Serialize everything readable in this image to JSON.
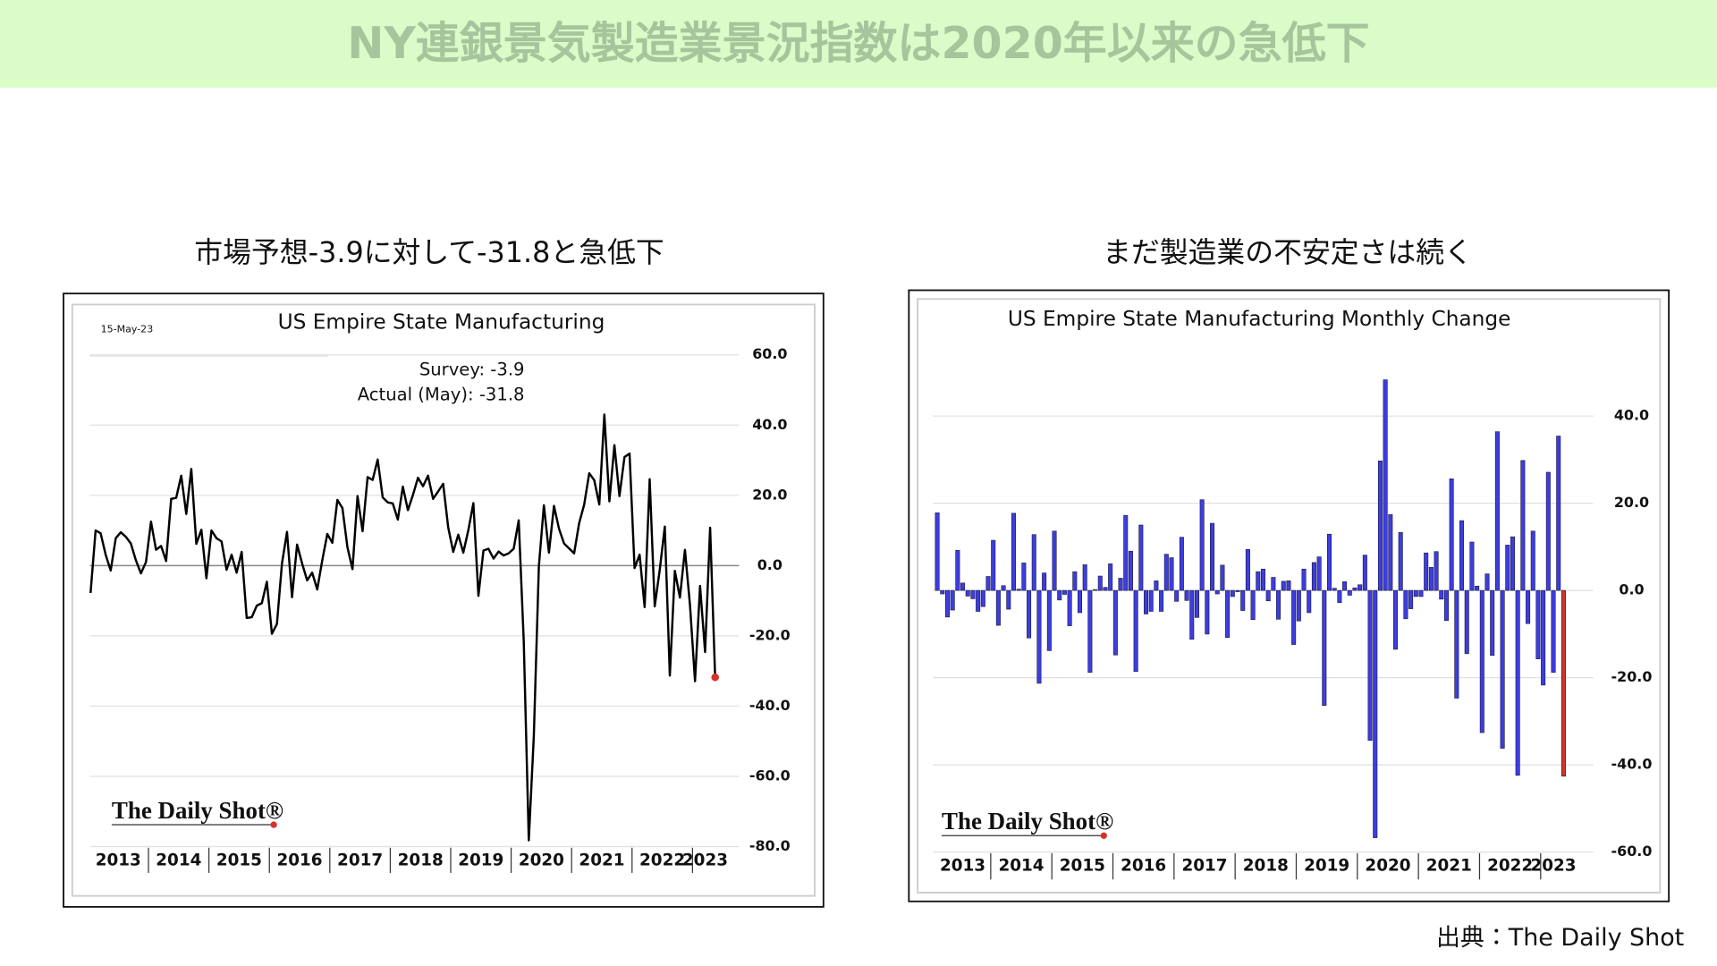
{
  "title": "NY連銀景気製造業景況指数は2020年以来の急低下",
  "source": "出典：The Daily Shot",
  "chart_data": [
    {
      "type": "line",
      "heading": "市場予想-3.9に対して-31.8と急低下",
      "title": "US Empire State Manufacturing",
      "date": "15-May-23",
      "annotations": [
        "Survey:  -3.9",
        "Actual (May):  -31.8"
      ],
      "logo": "The Daily Shot®",
      "categories": [
        "2013",
        null,
        null,
        null,
        null,
        null,
        null,
        null,
        null,
        null,
        null,
        null,
        "2014",
        null,
        null,
        null,
        null,
        null,
        null,
        null,
        null,
        null,
        null,
        null,
        "2015",
        null,
        null,
        null,
        null,
        null,
        null,
        null,
        null,
        null,
        null,
        null,
        "2016",
        null,
        null,
        null,
        null,
        null,
        null,
        null,
        null,
        null,
        null,
        null,
        "2017",
        null,
        null,
        null,
        null,
        null,
        null,
        null,
        null,
        null,
        null,
        null,
        "2018",
        null,
        null,
        null,
        null,
        null,
        null,
        null,
        null,
        null,
        null,
        null,
        "2019",
        null,
        null,
        null,
        null,
        null,
        null,
        null,
        null,
        null,
        null,
        null,
        "2020",
        null,
        null,
        null,
        null,
        null,
        null,
        null,
        null,
        null,
        null,
        null,
        "2021",
        null,
        null,
        null,
        null,
        null,
        null,
        null,
        null,
        null,
        null,
        null,
        "2022",
        null,
        null,
        null,
        null,
        null,
        null,
        null,
        null,
        null,
        null,
        null,
        "2023",
        null,
        null,
        null,
        null
      ],
      "values": [
        -7.8,
        10.0,
        9.2,
        3.1,
        -1.4,
        7.8,
        9.5,
        8.2,
        6.3,
        1.5,
        -2.2,
        1.0,
        12.5,
        4.5,
        5.6,
        1.3,
        19.0,
        19.3,
        25.6,
        14.7,
        27.5,
        6.2,
        10.2,
        -3.6,
        10.0,
        7.8,
        6.9,
        -1.2,
        3.1,
        -2.0,
        3.9,
        -14.9,
        -14.7,
        -11.4,
        -10.7,
        -4.6,
        -19.4,
        -16.6,
        0.6,
        9.6,
        -9.0,
        6.0,
        0.6,
        -4.2,
        -2.0,
        -6.8,
        1.5,
        9.0,
        6.5,
        18.7,
        16.4,
        5.2,
        -1.0,
        19.8,
        9.8,
        25.2,
        24.4,
        30.2,
        19.4,
        18.0,
        17.7,
        13.1,
        22.5,
        15.8,
        20.1,
        25.0,
        22.6,
        25.6,
        19.0,
        21.1,
        23.3,
        10.9,
        3.9,
        8.8,
        3.7,
        10.1,
        17.8,
        -8.6,
        4.3,
        4.8,
        2.0,
        4.0,
        2.9,
        3.5,
        4.8,
        12.9,
        -21.5,
        -78.2,
        -48.5,
        -0.2,
        17.2,
        3.7,
        17.0,
        10.5,
        6.3,
        4.9,
        3.5,
        12.1,
        17.4,
        26.3,
        24.3,
        17.4,
        43.0,
        18.3,
        34.3,
        19.8,
        30.9,
        31.9,
        -0.7,
        3.1,
        -11.8,
        24.6,
        -11.6,
        -1.2,
        11.1,
        -31.3,
        -1.5,
        -9.1,
        4.5,
        -11.2,
        -32.9,
        -5.8,
        -24.6,
        10.8,
        -31.8
      ],
      "color": "#000000",
      "end_marker_color": "#d9302a",
      "ylim": [
        -80,
        60
      ],
      "yticks": [
        {
          "value": 60,
          "label": "60.0"
        },
        {
          "value": 40,
          "label": "40.0"
        },
        {
          "value": 20,
          "label": "20.0"
        },
        {
          "value": 0,
          "label": "0.0"
        },
        {
          "value": -20,
          "label": "-20.0"
        },
        {
          "value": -40,
          "label": "-40.0"
        },
        {
          "value": -60,
          "label": "-60.0"
        },
        {
          "value": -80,
          "label": "-80.0"
        }
      ],
      "grid": true
    },
    {
      "type": "bar",
      "heading": "まだ製造業の不安定さは続く",
      "title": "US Empire State Manufacturing Monthly Change",
      "logo": "The Daily Shot®",
      "categories": [
        "2013",
        null,
        null,
        null,
        null,
        null,
        null,
        null,
        null,
        null,
        null,
        "2014",
        null,
        null,
        null,
        null,
        null,
        null,
        null,
        null,
        null,
        null,
        null,
        "2015",
        null,
        null,
        null,
        null,
        null,
        null,
        null,
        null,
        null,
        null,
        null,
        "2016",
        null,
        null,
        null,
        null,
        null,
        null,
        null,
        null,
        null,
        null,
        null,
        "2017",
        null,
        null,
        null,
        null,
        null,
        null,
        null,
        null,
        null,
        null,
        null,
        "2018",
        null,
        null,
        null,
        null,
        null,
        null,
        null,
        null,
        null,
        null,
        null,
        "2019",
        null,
        null,
        null,
        null,
        null,
        null,
        null,
        null,
        null,
        null,
        null,
        "2020",
        null,
        null,
        null,
        null,
        null,
        null,
        null,
        null,
        null,
        null,
        null,
        "2021",
        null,
        null,
        null,
        null,
        null,
        null,
        null,
        null,
        null,
        null,
        null,
        "2022",
        null,
        null,
        null,
        null,
        null,
        null,
        null,
        null,
        null,
        null,
        null,
        "2023",
        null,
        null,
        null,
        null
      ],
      "values": [
        17.8,
        -0.8,
        -6.1,
        -4.5,
        9.2,
        1.7,
        -1.3,
        -1.9,
        -4.8,
        -3.7,
        3.2,
        11.5,
        -8.0,
        1.1,
        -4.3,
        17.7,
        0.3,
        6.3,
        -10.9,
        12.8,
        -21.3,
        4.0,
        -13.8,
        13.6,
        -2.2,
        -0.9,
        -8.1,
        4.3,
        -5.1,
        5.9,
        -18.8,
        0.2,
        3.3,
        0.7,
        6.1,
        -14.8,
        2.8,
        17.2,
        9.0,
        -18.6,
        15.0,
        -5.4,
        -4.8,
        2.2,
        -4.8,
        8.3,
        7.5,
        -2.5,
        12.2,
        -2.3,
        -11.2,
        -6.2,
        20.8,
        -10.0,
        15.4,
        -0.8,
        5.8,
        -10.8,
        -1.4,
        -0.3,
        -4.6,
        9.4,
        -6.7,
        4.3,
        4.9,
        -2.4,
        3.0,
        -6.6,
        2.1,
        2.2,
        -12.4,
        -7.0,
        4.9,
        -5.1,
        6.4,
        7.7,
        -26.4,
        12.9,
        0.5,
        -2.8,
        2.0,
        -1.1,
        0.6,
        1.3,
        8.1,
        -34.4,
        -56.7,
        29.7,
        48.3,
        17.4,
        -13.5,
        13.3,
        -6.5,
        -4.2,
        -1.4,
        -1.4,
        8.6,
        5.3,
        8.9,
        -2.0,
        -6.9,
        25.6,
        -24.7,
        16.0,
        -14.5,
        11.1,
        1.0,
        -32.6,
        3.8,
        -14.9,
        36.4,
        -36.2,
        10.4,
        12.3,
        -42.4,
        29.8,
        -7.6,
        13.6,
        -15.7,
        -21.7,
        27.1,
        -18.8,
        35.4,
        -42.6
      ],
      "color": "#3d3de0",
      "last_color": "#d0352a",
      "ylim": [
        -60,
        50
      ],
      "yticks": [
        {
          "value": 40,
          "label": "40.0"
        },
        {
          "value": 20,
          "label": "20.0"
        },
        {
          "value": 0,
          "label": "0.0"
        },
        {
          "value": -20,
          "label": "-20.0"
        },
        {
          "value": -40,
          "label": "-40.0"
        },
        {
          "value": -60,
          "label": "-60.0"
        }
      ],
      "grid": true
    }
  ]
}
